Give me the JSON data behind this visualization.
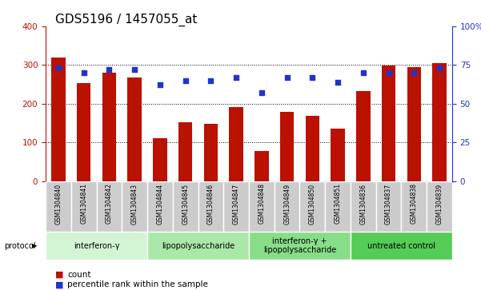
{
  "title": "GDS5196 / 1457055_at",
  "samples": [
    "GSM1304840",
    "GSM1304841",
    "GSM1304842",
    "GSM1304843",
    "GSM1304844",
    "GSM1304845",
    "GSM1304846",
    "GSM1304847",
    "GSM1304848",
    "GSM1304849",
    "GSM1304850",
    "GSM1304851",
    "GSM1304836",
    "GSM1304837",
    "GSM1304838",
    "GSM1304839"
  ],
  "counts": [
    318,
    253,
    280,
    268,
    110,
    152,
    148,
    192,
    77,
    178,
    169,
    136,
    232,
    298,
    295,
    305
  ],
  "percentiles": [
    73,
    70,
    72,
    72,
    62,
    65,
    65,
    67,
    57,
    67,
    67,
    64,
    70,
    70,
    70,
    73
  ],
  "groups": [
    {
      "label": "interferon-γ",
      "start": 0,
      "end": 4,
      "color": "#d4f5d4"
    },
    {
      "label": "lipopolysaccharide",
      "start": 4,
      "end": 8,
      "color": "#aae8aa"
    },
    {
      "label": "interferon-γ +\nlipopolysaccharide",
      "start": 8,
      "end": 12,
      "color": "#88dd88"
    },
    {
      "label": "untreated control",
      "start": 12,
      "end": 16,
      "color": "#55cc55"
    }
  ],
  "bar_color": "#bb1100",
  "dot_color": "#2233cc",
  "ylim_left": [
    0,
    400
  ],
  "ylim_right": [
    0,
    100
  ],
  "yticks_left": [
    0,
    100,
    200,
    300,
    400
  ],
  "yticks_right": [
    0,
    25,
    50,
    75,
    100
  ],
  "yticklabels_right": [
    "0",
    "25",
    "50",
    "75",
    "100%"
  ],
  "grid_values": [
    100,
    200,
    300
  ],
  "bar_width": 0.55,
  "sample_box_color": "#cccccc",
  "title_fontsize": 11,
  "tick_fontsize": 7.5,
  "sample_fontsize": 5.5,
  "group_fontsize": 7,
  "legend_fontsize": 7.5,
  "protocol_label": "protocol",
  "legend_count": "count",
  "legend_percentile": "percentile rank within the sample"
}
